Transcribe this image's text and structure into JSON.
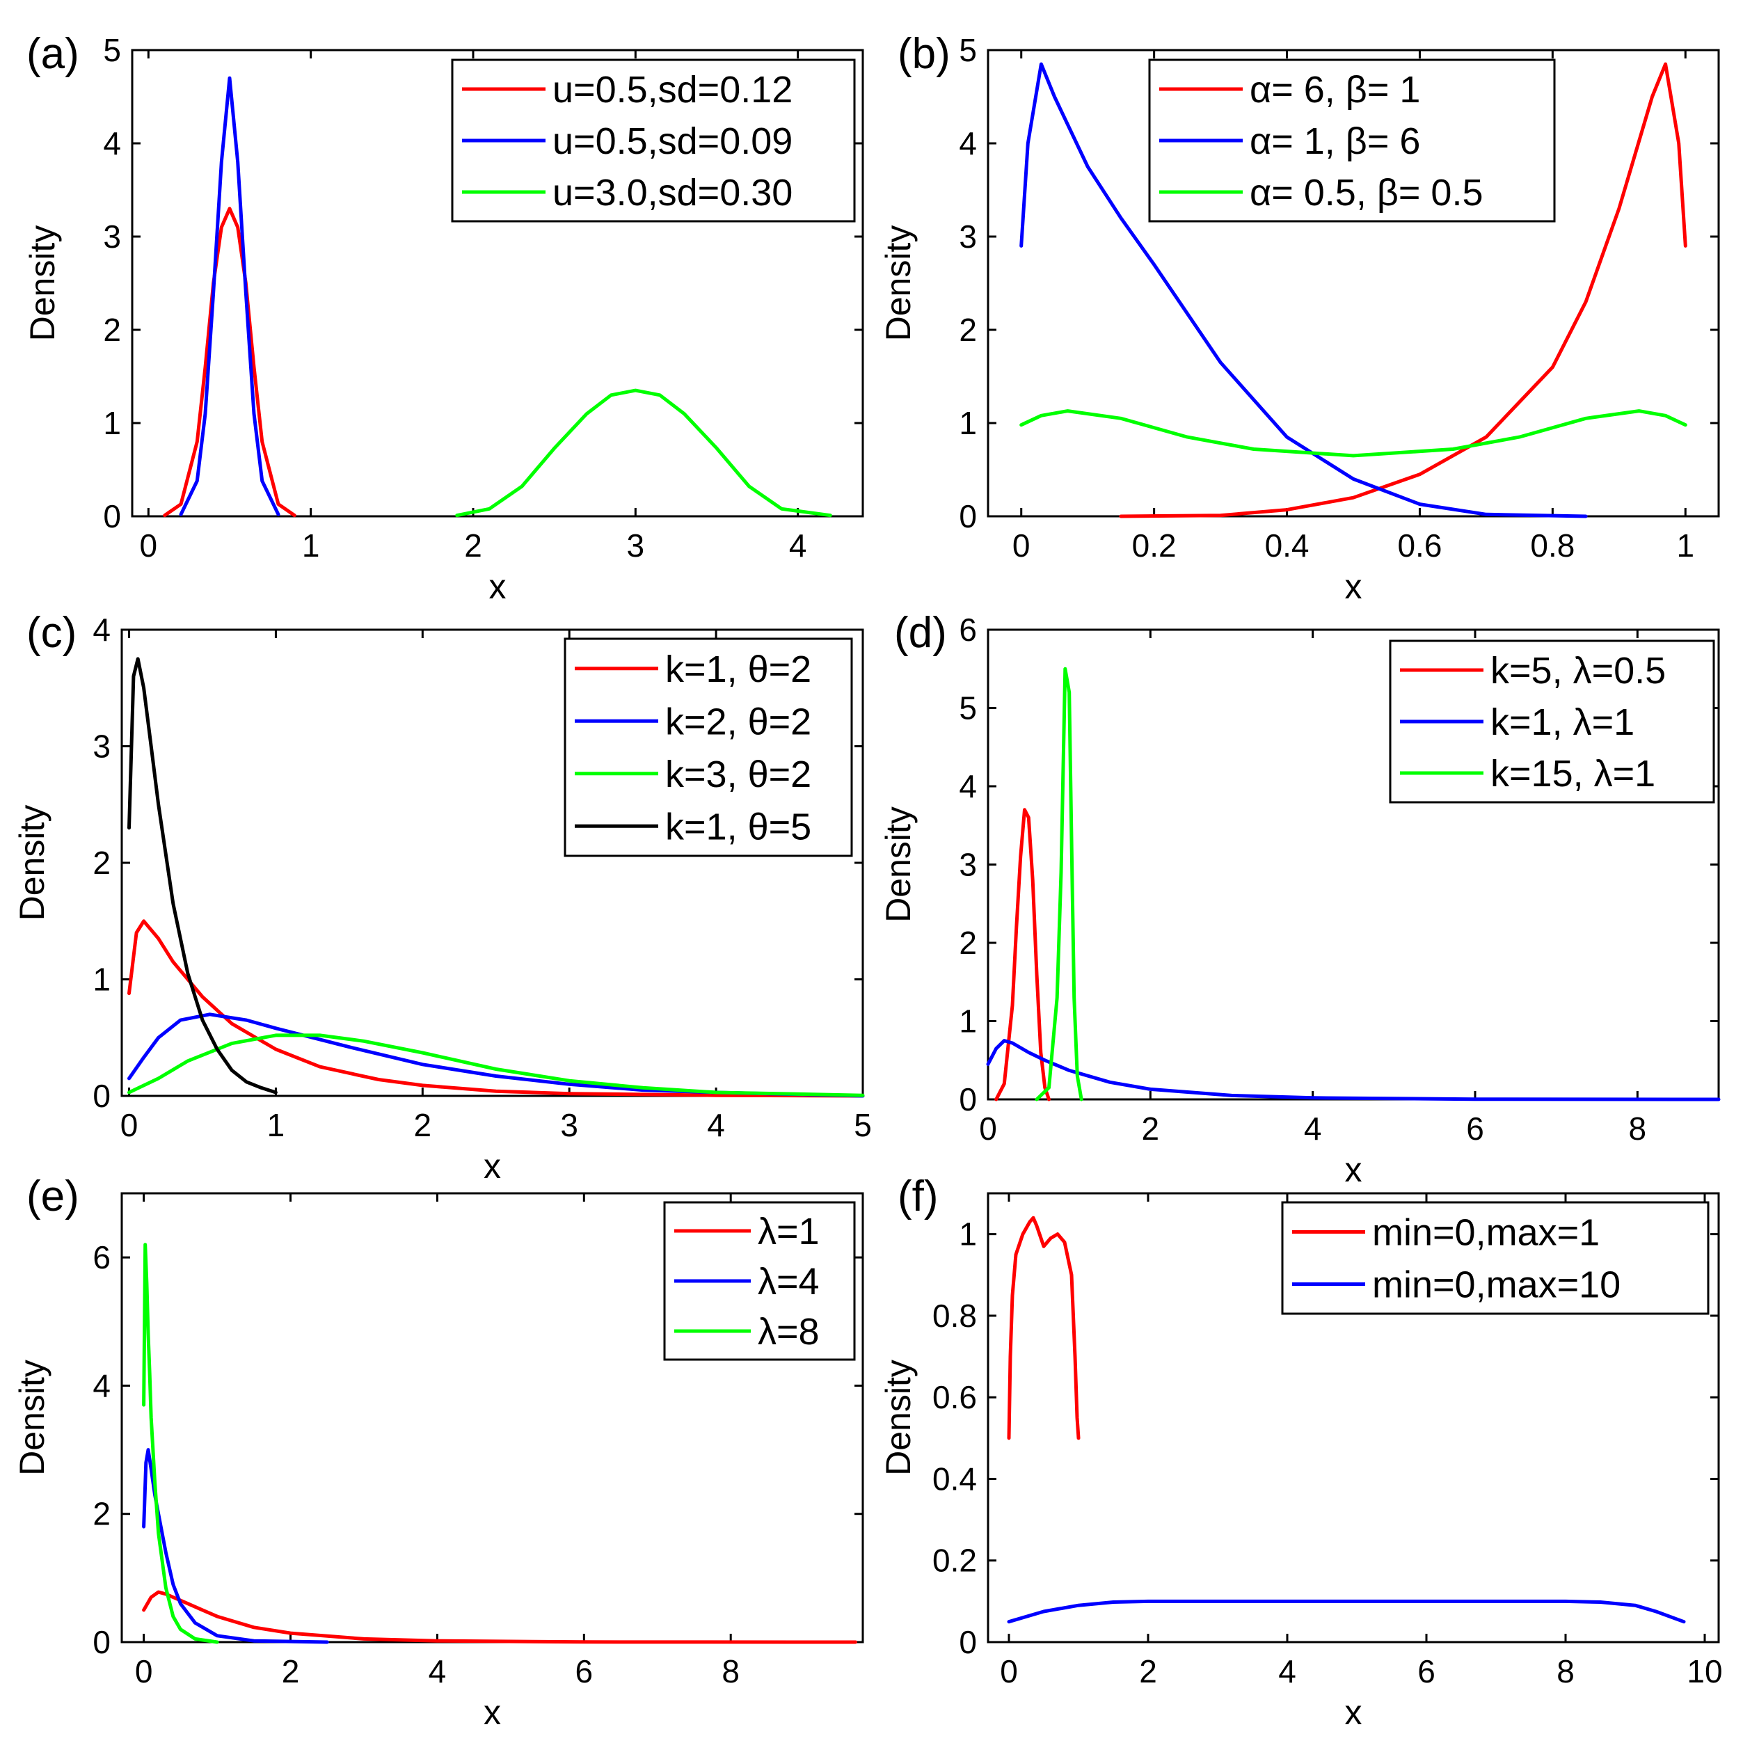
{
  "colors": {
    "red": "#ff0000",
    "blue": "#0000ff",
    "green": "#00ff00",
    "black": "#000000"
  },
  "chart_data": [
    {
      "panel": "(a)",
      "type": "line",
      "distribution": "normal",
      "xlabel": "x",
      "ylabel": "Density",
      "xlim": [
        -0.1,
        4.4
      ],
      "ylim": [
        0,
        5
      ],
      "xticks": [
        0,
        1,
        2,
        3,
        4
      ],
      "xtick_labels": [
        "0",
        "1",
        "2",
        "3",
        "4"
      ],
      "yticks": [
        0,
        1,
        2,
        3,
        4,
        5
      ],
      "ytick_labels": [
        "0",
        "1",
        "2",
        "3",
        "4",
        "5"
      ],
      "legend_position": "top-right",
      "series": [
        {
          "name": "u=0.5,sd=0.12",
          "color": "red",
          "x": [
            0.1,
            0.2,
            0.3,
            0.35,
            0.4,
            0.45,
            0.5,
            0.55,
            0.6,
            0.65,
            0.7,
            0.8,
            0.9
          ],
          "y": [
            0.01,
            0.13,
            0.8,
            1.6,
            2.5,
            3.1,
            3.3,
            3.1,
            2.5,
            1.6,
            0.8,
            0.13,
            0.01
          ]
        },
        {
          "name": "u=0.5,sd=0.09",
          "color": "blue",
          "x": [
            0.2,
            0.3,
            0.35,
            0.4,
            0.45,
            0.5,
            0.55,
            0.6,
            0.65,
            0.7,
            0.8
          ],
          "y": [
            0.02,
            0.38,
            1.1,
            2.4,
            3.8,
            4.7,
            3.8,
            2.4,
            1.1,
            0.38,
            0.02
          ]
        },
        {
          "name": "u=3.0,sd=0.30",
          "color": "green",
          "x": [
            1.9,
            2.1,
            2.3,
            2.5,
            2.7,
            2.85,
            3.0,
            3.15,
            3.3,
            3.5,
            3.7,
            3.9,
            4.2
          ],
          "y": [
            0.01,
            0.08,
            0.32,
            0.73,
            1.1,
            1.3,
            1.35,
            1.3,
            1.1,
            0.73,
            0.32,
            0.08,
            0.01
          ]
        }
      ]
    },
    {
      "panel": "(b)",
      "type": "line",
      "distribution": "beta",
      "xlabel": "x",
      "ylabel": "Density",
      "xlim": [
        -0.05,
        1.05
      ],
      "ylim": [
        0,
        5
      ],
      "xticks": [
        0,
        0.2,
        0.4,
        0.6,
        0.8,
        1
      ],
      "xtick_labels": [
        "0",
        "0.2",
        "0.4",
        "0.6",
        "0.8",
        "1"
      ],
      "yticks": [
        0,
        1,
        2,
        3,
        4,
        5
      ],
      "ytick_labels": [
        "0",
        "1",
        "2",
        "3",
        "4",
        "5"
      ],
      "legend_position": "top-center",
      "series": [
        {
          "name": "α= 6, β= 1",
          "color": "red",
          "x": [
            0.15,
            0.3,
            0.4,
            0.5,
            0.6,
            0.7,
            0.8,
            0.85,
            0.9,
            0.95,
            0.97,
            0.99,
            1.0
          ],
          "y": [
            0.0,
            0.01,
            0.07,
            0.2,
            0.45,
            0.85,
            1.6,
            2.3,
            3.3,
            4.5,
            4.85,
            4.0,
            2.9
          ]
        },
        {
          "name": "α= 1, β= 6",
          "color": "blue",
          "x": [
            0.0,
            0.01,
            0.03,
            0.05,
            0.1,
            0.15,
            0.2,
            0.3,
            0.4,
            0.5,
            0.6,
            0.7,
            0.85
          ],
          "y": [
            2.9,
            4.0,
            4.85,
            4.5,
            3.75,
            3.2,
            2.7,
            1.65,
            0.85,
            0.4,
            0.13,
            0.02,
            0.0
          ]
        },
        {
          "name": "α= 0.5, β= 0.5",
          "color": "green",
          "x": [
            0.0,
            0.03,
            0.07,
            0.15,
            0.25,
            0.35,
            0.5,
            0.65,
            0.75,
            0.85,
            0.93,
            0.97,
            1.0
          ],
          "y": [
            0.98,
            1.08,
            1.13,
            1.05,
            0.85,
            0.72,
            0.65,
            0.72,
            0.85,
            1.05,
            1.13,
            1.08,
            0.98
          ]
        }
      ]
    },
    {
      "panel": "(c)",
      "type": "line",
      "distribution": "gamma",
      "xlabel": "x",
      "ylabel": "Density",
      "xlim": [
        -0.05,
        5
      ],
      "ylim": [
        0,
        4
      ],
      "xticks": [
        0,
        1,
        2,
        3,
        4,
        5
      ],
      "xtick_labels": [
        "0",
        "1",
        "2",
        "3",
        "4",
        "5"
      ],
      "yticks": [
        0,
        1,
        2,
        3,
        4
      ],
      "ytick_labels": [
        "0",
        "1",
        "2",
        "3",
        "4"
      ],
      "legend_position": "top-right",
      "series": [
        {
          "name": "k=1, θ=2",
          "color": "red",
          "x": [
            0.0,
            0.05,
            0.1,
            0.2,
            0.3,
            0.5,
            0.7,
            1.0,
            1.3,
            1.7,
            2.0,
            2.5,
            3.0,
            4.0,
            5.0
          ],
          "y": [
            0.88,
            1.4,
            1.5,
            1.35,
            1.15,
            0.85,
            0.62,
            0.4,
            0.25,
            0.14,
            0.09,
            0.04,
            0.02,
            0.005,
            0.0
          ]
        },
        {
          "name": "k=2, θ=2",
          "color": "blue",
          "x": [
            0.0,
            0.1,
            0.2,
            0.35,
            0.55,
            0.8,
            1.0,
            1.5,
            2.0,
            2.5,
            3.0,
            3.5,
            4.0,
            5.0
          ],
          "y": [
            0.15,
            0.33,
            0.5,
            0.65,
            0.7,
            0.65,
            0.58,
            0.42,
            0.27,
            0.17,
            0.1,
            0.05,
            0.03,
            0.0
          ]
        },
        {
          "name": "k=3, θ=2",
          "color": "green",
          "x": [
            0.0,
            0.2,
            0.4,
            0.7,
            1.0,
            1.3,
            1.6,
            2.0,
            2.5,
            3.0,
            3.5,
            4.0,
            5.0
          ],
          "y": [
            0.03,
            0.15,
            0.3,
            0.45,
            0.52,
            0.52,
            0.47,
            0.37,
            0.23,
            0.13,
            0.07,
            0.03,
            0.005
          ]
        },
        {
          "name": "k=1, θ=5",
          "color": "black",
          "x": [
            0.0,
            0.03,
            0.06,
            0.1,
            0.15,
            0.2,
            0.3,
            0.4,
            0.5,
            0.6,
            0.7,
            0.8,
            0.9,
            1.0
          ],
          "y": [
            2.3,
            3.6,
            3.75,
            3.5,
            3.0,
            2.5,
            1.65,
            1.05,
            0.65,
            0.4,
            0.22,
            0.12,
            0.07,
            0.03
          ]
        }
      ]
    },
    {
      "panel": "(d)",
      "type": "line",
      "distribution": "weibull",
      "xlabel": "x",
      "ylabel": "Density",
      "xlim": [
        0,
        9
      ],
      "ylim": [
        0,
        6
      ],
      "xticks": [
        0,
        2,
        4,
        6,
        8
      ],
      "xtick_labels": [
        "0",
        "2",
        "4",
        "6",
        "8"
      ],
      "yticks": [
        0,
        1,
        2,
        3,
        4,
        5,
        6
      ],
      "ytick_labels": [
        "0",
        "1",
        "2",
        "3",
        "4",
        "5",
        "6"
      ],
      "legend_position": "top-right",
      "series": [
        {
          "name": "k=5, λ=0.5",
          "color": "red",
          "x": [
            0.1,
            0.2,
            0.3,
            0.35,
            0.4,
            0.45,
            0.5,
            0.55,
            0.6,
            0.65,
            0.7,
            0.75
          ],
          "y": [
            0.0,
            0.2,
            1.2,
            2.2,
            3.1,
            3.7,
            3.6,
            2.8,
            1.6,
            0.6,
            0.15,
            0.0
          ]
        },
        {
          "name": "k=1, λ=1",
          "color": "blue",
          "x": [
            0.0,
            0.1,
            0.2,
            0.3,
            0.5,
            0.7,
            1.0,
            1.5,
            2.0,
            3.0,
            4.0,
            6.0,
            9.0
          ],
          "y": [
            0.45,
            0.65,
            0.75,
            0.72,
            0.6,
            0.5,
            0.37,
            0.22,
            0.13,
            0.05,
            0.02,
            0.003,
            0.0
          ]
        },
        {
          "name": "k=15, λ=1",
          "color": "green",
          "x": [
            0.6,
            0.75,
            0.85,
            0.9,
            0.95,
            1.0,
            1.03,
            1.06,
            1.1,
            1.15
          ],
          "y": [
            0.0,
            0.15,
            1.3,
            2.9,
            5.5,
            5.2,
            3.2,
            1.3,
            0.3,
            0.0
          ]
        }
      ]
    },
    {
      "panel": "(e)",
      "type": "line",
      "distribution": "exponential",
      "xlabel": "x",
      "ylabel": "Density",
      "xlim": [
        -0.3,
        9.8
      ],
      "ylim": [
        0,
        7
      ],
      "xticks": [
        0,
        2,
        4,
        6,
        8
      ],
      "xtick_labels": [
        "0",
        "2",
        "4",
        "6",
        "8"
      ],
      "yticks": [
        0,
        2,
        4,
        6
      ],
      "ytick_labels": [
        "0",
        "2",
        "4",
        "6"
      ],
      "legend_position": "top-right",
      "series": [
        {
          "name": "λ=1",
          "color": "red",
          "x": [
            0.0,
            0.1,
            0.2,
            0.3,
            0.5,
            0.8,
            1.0,
            1.5,
            2.0,
            3.0,
            4.0,
            6.0,
            9.7
          ],
          "y": [
            0.5,
            0.7,
            0.78,
            0.75,
            0.65,
            0.5,
            0.4,
            0.23,
            0.14,
            0.05,
            0.02,
            0.002,
            0.0
          ]
        },
        {
          "name": "λ=4",
          "color": "blue",
          "x": [
            0.0,
            0.03,
            0.06,
            0.1,
            0.15,
            0.2,
            0.3,
            0.4,
            0.5,
            0.7,
            1.0,
            1.5,
            2.5
          ],
          "y": [
            1.8,
            2.8,
            3.0,
            2.7,
            2.3,
            2.0,
            1.4,
            0.9,
            0.6,
            0.3,
            0.1,
            0.02,
            0.0
          ]
        },
        {
          "name": "λ=8",
          "color": "green",
          "x": [
            0.0,
            0.02,
            0.04,
            0.06,
            0.08,
            0.1,
            0.15,
            0.2,
            0.3,
            0.4,
            0.5,
            0.7,
            1.0
          ],
          "y": [
            3.7,
            6.2,
            5.6,
            4.8,
            4.2,
            3.5,
            2.5,
            1.7,
            0.85,
            0.4,
            0.2,
            0.05,
            0.0
          ]
        }
      ]
    },
    {
      "panel": "(f)",
      "type": "line",
      "distribution": "uniform",
      "xlabel": "x",
      "ylabel": "Density",
      "xlim": [
        -0.3,
        10.2
      ],
      "ylim": [
        0,
        1.1
      ],
      "xticks": [
        0,
        2,
        4,
        6,
        8,
        10
      ],
      "xtick_labels": [
        "0",
        "2",
        "4",
        "6",
        "8",
        "10"
      ],
      "yticks": [
        0,
        0.2,
        0.4,
        0.6,
        0.8,
        1
      ],
      "ytick_labels": [
        "0",
        "0.2",
        "0.4",
        "0.6",
        "0.8",
        "1"
      ],
      "legend_position": "top-right",
      "series": [
        {
          "name": "min=0,max=1",
          "color": "red",
          "x": [
            0.0,
            0.02,
            0.05,
            0.1,
            0.2,
            0.3,
            0.35,
            0.4,
            0.5,
            0.6,
            0.7,
            0.8,
            0.9,
            0.95,
            0.98,
            1.0
          ],
          "y": [
            0.5,
            0.7,
            0.85,
            0.95,
            1.0,
            1.03,
            1.04,
            1.02,
            0.97,
            0.99,
            1.0,
            0.98,
            0.9,
            0.7,
            0.55,
            0.5
          ]
        },
        {
          "name": "min=0,max=10",
          "color": "blue",
          "x": [
            0.0,
            0.5,
            1.0,
            1.5,
            2.0,
            4.0,
            6.0,
            8.0,
            8.5,
            9.0,
            9.3,
            9.7
          ],
          "y": [
            0.05,
            0.075,
            0.09,
            0.098,
            0.1,
            0.1,
            0.1,
            0.1,
            0.098,
            0.09,
            0.075,
            0.05
          ]
        }
      ]
    }
  ]
}
